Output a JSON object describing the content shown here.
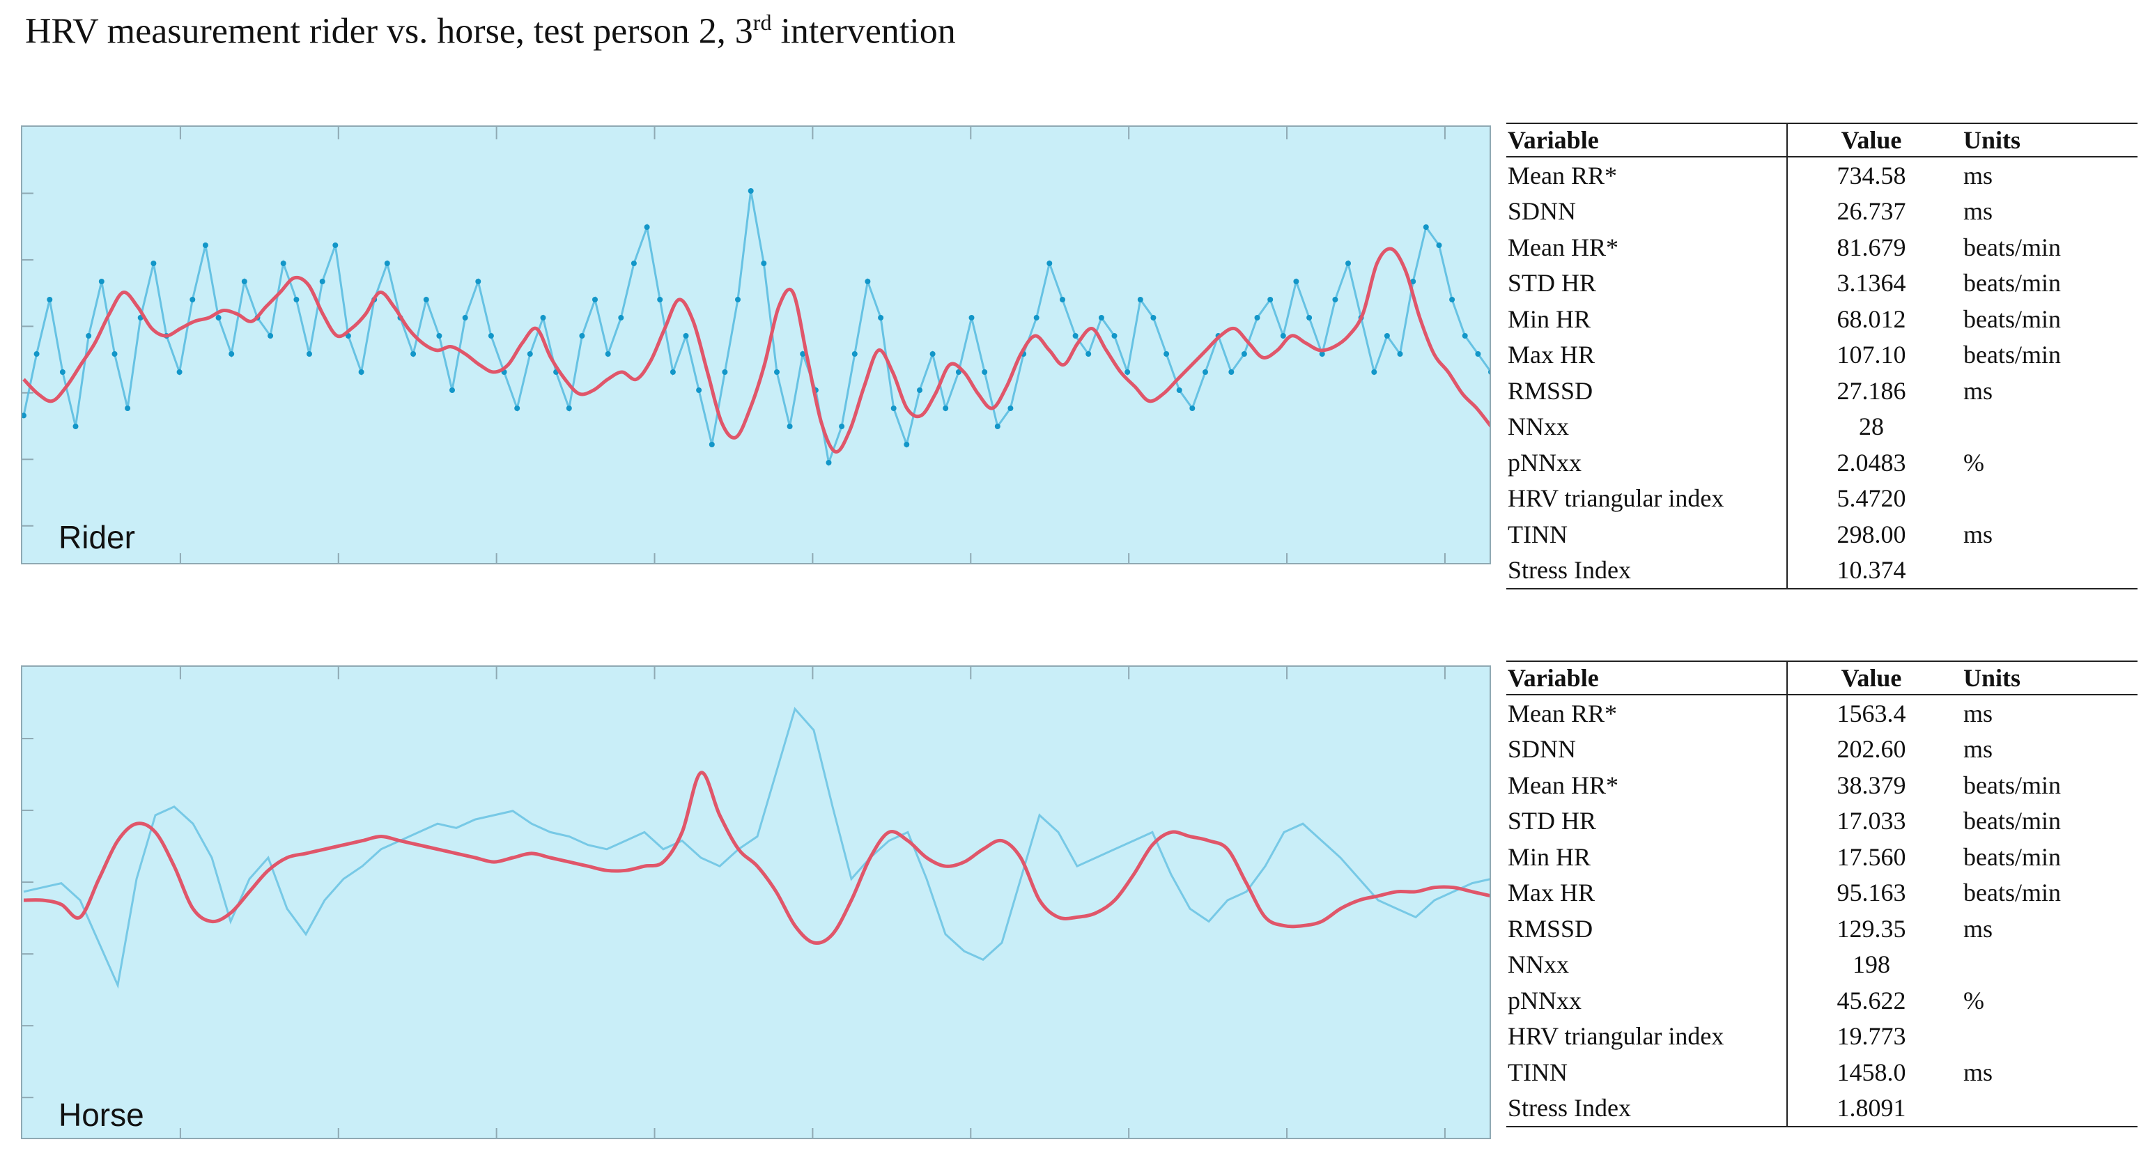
{
  "title": {
    "main": "HRV measurement rider vs. horse, test person 2, 3",
    "sup": "rd",
    "tail": " intervention"
  },
  "colors": {
    "panel_bg": "#c9eef8",
    "raw_line": "#5bbce0",
    "raw_points": "#1296c8",
    "smooth_line": "#e0566a"
  },
  "chart_data": [
    {
      "type": "line",
      "panel_label": "Rider",
      "series": [
        {
          "name": "raw",
          "values": [
            28,
            45,
            60,
            40,
            25,
            50,
            65,
            45,
            30,
            55,
            70,
            50,
            40,
            60,
            75,
            55,
            45,
            65,
            55,
            50,
            70,
            60,
            45,
            65,
            75,
            50,
            40,
            60,
            70,
            55,
            45,
            60,
            50,
            35,
            55,
            65,
            50,
            40,
            30,
            45,
            55,
            40,
            30,
            50,
            60,
            45,
            55,
            70,
            80,
            60,
            40,
            50,
            35,
            20,
            40,
            60,
            90,
            70,
            40,
            25,
            45,
            35,
            15,
            25,
            45,
            65,
            55,
            30,
            20,
            35,
            45,
            30,
            40,
            55,
            40,
            25,
            30,
            45,
            55,
            70,
            60,
            50,
            45,
            55,
            50,
            40,
            60,
            55,
            45,
            35,
            30,
            40,
            50,
            40,
            45,
            55,
            60,
            50,
            65,
            55,
            45,
            60,
            70,
            55,
            40,
            50,
            45,
            65,
            80,
            75,
            60,
            50,
            45,
            40
          ]
        },
        {
          "name": "smoothed",
          "values": [
            38,
            34,
            32,
            36,
            42,
            48,
            56,
            62,
            58,
            52,
            50,
            52,
            54,
            55,
            57,
            56,
            54,
            58,
            62,
            66,
            64,
            56,
            50,
            52,
            56,
            62,
            58,
            52,
            48,
            46,
            47,
            45,
            42,
            40,
            42,
            48,
            52,
            44,
            38,
            34,
            35,
            38,
            40,
            38,
            43,
            52,
            60,
            54,
            40,
            26,
            22,
            30,
            42,
            58,
            62,
            44,
            26,
            18,
            24,
            36,
            46,
            40,
            30,
            28,
            34,
            42,
            40,
            34,
            30,
            36,
            45,
            50,
            46,
            42,
            48,
            52,
            46,
            40,
            36,
            32,
            34,
            38,
            42,
            46,
            50,
            52,
            48,
            44,
            46,
            50,
            48,
            46,
            47,
            50,
            56,
            70,
            74,
            68,
            55,
            45,
            40,
            34,
            30,
            25
          ]
        }
      ]
    },
    {
      "type": "line",
      "panel_label": "Horse",
      "series": [
        {
          "name": "raw",
          "values": [
            52,
            53,
            54,
            50,
            40,
            30,
            55,
            70,
            72,
            68,
            60,
            45,
            55,
            60,
            48,
            42,
            50,
            55,
            58,
            62,
            64,
            66,
            68,
            67,
            69,
            70,
            71,
            68,
            66,
            65,
            63,
            62,
            64,
            66,
            62,
            64,
            60,
            58,
            62,
            65,
            80,
            95,
            90,
            72,
            55,
            60,
            64,
            66,
            55,
            42,
            38,
            36,
            40,
            55,
            70,
            66,
            58,
            60,
            62,
            64,
            66,
            56,
            48,
            45,
            50,
            52,
            58,
            66,
            68,
            64,
            60,
            55,
            50,
            48,
            46,
            50,
            52,
            54,
            55
          ]
        },
        {
          "name": "smoothed",
          "values": [
            50,
            50,
            49,
            46,
            55,
            64,
            68,
            66,
            58,
            48,
            45,
            47,
            52,
            57,
            60,
            61,
            62,
            63,
            64,
            65,
            64,
            63,
            62,
            61,
            60,
            59,
            60,
            61,
            60,
            59,
            58,
            57,
            57,
            58,
            59,
            66,
            80,
            70,
            62,
            58,
            52,
            44,
            40,
            42,
            50,
            60,
            66,
            64,
            60,
            58,
            59,
            62,
            64,
            60,
            50,
            46,
            46,
            47,
            50,
            56,
            63,
            66,
            65,
            64,
            62,
            54,
            46,
            44,
            44,
            45,
            48,
            50,
            51,
            52,
            52,
            53,
            53,
            52,
            51
          ]
        }
      ]
    }
  ],
  "tables": [
    {
      "headers": [
        "Variable",
        "Value",
        "Units"
      ],
      "rows": [
        [
          "Mean RR*",
          "734.58",
          "ms"
        ],
        [
          "SDNN",
          "26.737",
          "ms"
        ],
        [
          "Mean HR*",
          "81.679",
          "beats/min"
        ],
        [
          "STD HR",
          "3.1364",
          "beats/min"
        ],
        [
          "Min HR",
          "68.012",
          "beats/min"
        ],
        [
          "Max HR",
          "107.10",
          "beats/min"
        ],
        [
          "RMSSD",
          "27.186",
          "ms"
        ],
        [
          "NNxx",
          "28",
          ""
        ],
        [
          "pNNxx",
          "2.0483",
          "%"
        ],
        [
          "HRV triangular index",
          "5.4720",
          ""
        ],
        [
          "TINN",
          "298.00",
          "ms"
        ],
        [
          "Stress Index",
          "10.374",
          ""
        ]
      ]
    },
    {
      "headers": [
        "Variable",
        "Value",
        "Units"
      ],
      "rows": [
        [
          "Mean RR*",
          "1563.4",
          "ms"
        ],
        [
          "SDNN",
          "202.60",
          "ms"
        ],
        [
          "Mean HR*",
          "38.379",
          "beats/min"
        ],
        [
          "STD HR",
          "17.033",
          "beats/min"
        ],
        [
          "Min HR",
          "17.560",
          "beats/min"
        ],
        [
          "Max HR",
          "95.163",
          "beats/min"
        ],
        [
          "RMSSD",
          "129.35",
          "ms"
        ],
        [
          "NNxx",
          "198",
          ""
        ],
        [
          "pNNxx",
          "45.622",
          "%"
        ],
        [
          "HRV triangular index",
          "19.773",
          ""
        ],
        [
          "TINN",
          "1458.0",
          "ms"
        ],
        [
          "Stress Index",
          "1.8091",
          ""
        ]
      ]
    }
  ]
}
